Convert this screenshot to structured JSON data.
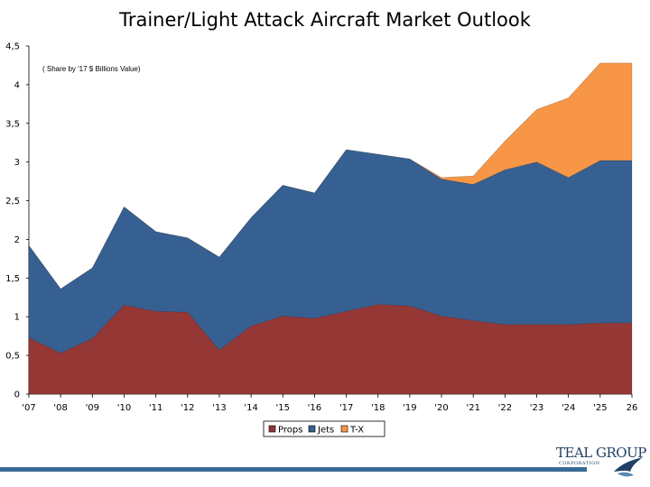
{
  "chart_data": {
    "type": "area",
    "stacked": true,
    "title": "Trainer/Light Attack Aircraft Market Outlook",
    "note": "( Share by '17 $ Billions Value)",
    "x": [
      "'07",
      "'08",
      "'09",
      "'10",
      "'11",
      "'12",
      "'13",
      "'14",
      "'15",
      "'16",
      "'17",
      "'18",
      "'19",
      "'20",
      "'21",
      "'22",
      "'23",
      "'24",
      "'25",
      "26"
    ],
    "ylim": [
      0,
      4.5
    ],
    "yticks": [
      "0",
      "0,5",
      "1",
      "1,5",
      "2",
      "2,5",
      "3",
      "3,5",
      "4",
      "4,5"
    ],
    "ytick_values": [
      0,
      0.5,
      1,
      1.5,
      2,
      2.5,
      3,
      3.5,
      4,
      4.5
    ],
    "series": [
      {
        "name": "Props",
        "color": "#953735",
        "values": [
          0.73,
          0.53,
          0.72,
          1.15,
          1.07,
          1.06,
          0.57,
          0.88,
          1.01,
          0.98,
          1.07,
          1.16,
          1.14,
          1.01,
          0.95,
          0.9,
          0.9,
          0.9,
          0.92,
          0.92
        ]
      },
      {
        "name": "Jets",
        "color": "#376092",
        "values": [
          1.19,
          0.83,
          0.91,
          1.27,
          1.03,
          0.96,
          1.2,
          1.4,
          1.69,
          1.62,
          2.09,
          1.94,
          1.9,
          1.77,
          1.76,
          2.0,
          2.1,
          1.9,
          2.1,
          2.1
        ]
      },
      {
        "name": "T-X",
        "color": "#f79646",
        "values": [
          0,
          0,
          0,
          0,
          0,
          0,
          0,
          0,
          0,
          0,
          0,
          0,
          0,
          0.02,
          0.11,
          0.37,
          0.68,
          1.03,
          1.26,
          1.26
        ]
      }
    ],
    "legend_position": "bottom"
  },
  "logo": {
    "name": "TEAL GROUP",
    "sub": "CORPORATION"
  }
}
